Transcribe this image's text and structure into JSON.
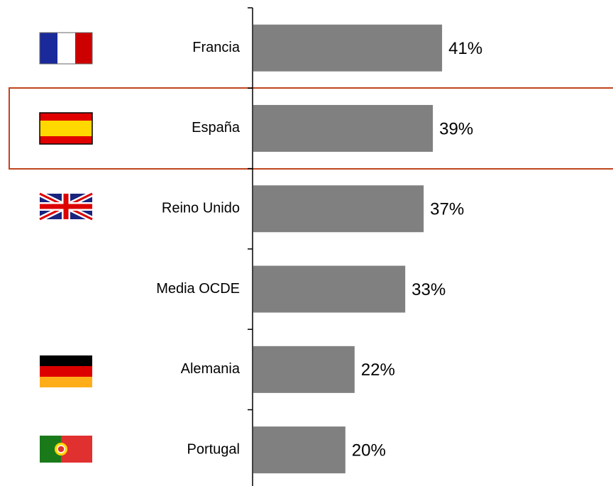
{
  "chart_data": {
    "type": "bar",
    "orientation": "horizontal",
    "categories": [
      "Francia",
      "España",
      "Reino Unido",
      "Media OCDE",
      "Alemania",
      "Portugal"
    ],
    "values": [
      41,
      39,
      37,
      33,
      22,
      20
    ],
    "value_labels": [
      "41%",
      "39%",
      "37%",
      "33%",
      "22%",
      "20%"
    ],
    "color": "#808080"
  }
}
